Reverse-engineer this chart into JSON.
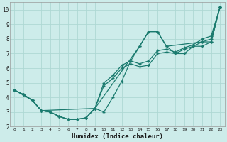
{
  "xlabel": "Humidex (Indice chaleur)",
  "bg_color": "#cdecea",
  "line_color": "#1a7a6e",
  "grid_color": "#aed8d4",
  "xlim": [
    -0.5,
    23.5
  ],
  "ylim": [
    2,
    10.5
  ],
  "xticks": [
    0,
    1,
    2,
    3,
    4,
    5,
    6,
    7,
    8,
    9,
    10,
    11,
    12,
    13,
    14,
    15,
    16,
    17,
    18,
    19,
    20,
    21,
    22,
    23
  ],
  "yticks": [
    2,
    3,
    4,
    5,
    6,
    7,
    8,
    9,
    10
  ],
  "lines": [
    {
      "x": [
        0,
        1,
        2,
        3,
        4,
        5,
        6,
        7,
        8,
        9,
        10,
        11,
        12,
        13,
        14,
        15,
        16,
        17,
        18,
        19,
        20,
        21,
        22,
        23
      ],
      "y": [
        4.5,
        4.2,
        3.8,
        3.1,
        3.0,
        2.7,
        2.5,
        2.5,
        2.6,
        3.25,
        3.0,
        4.0,
        5.1,
        6.5,
        7.5,
        8.5,
        8.5,
        7.5,
        7.0,
        7.0,
        7.5,
        7.5,
        7.8,
        10.2
      ]
    },
    {
      "x": [
        0,
        1,
        2,
        3,
        4,
        5,
        6,
        7,
        8,
        9,
        10,
        11,
        12,
        13,
        14,
        15,
        16,
        17,
        18,
        19,
        20,
        21,
        22,
        23
      ],
      "y": [
        4.5,
        4.2,
        3.8,
        3.1,
        3.0,
        2.7,
        2.5,
        2.5,
        2.6,
        3.25,
        4.8,
        5.3,
        6.0,
        6.3,
        6.1,
        6.2,
        7.0,
        7.1,
        7.0,
        7.3,
        7.5,
        7.8,
        8.0,
        10.2
      ]
    },
    {
      "x": [
        0,
        1,
        2,
        3,
        4,
        5,
        6,
        7,
        8,
        9,
        10,
        11,
        12,
        13,
        14,
        15,
        16,
        17,
        18,
        19,
        20,
        21,
        22,
        23
      ],
      "y": [
        4.5,
        4.2,
        3.8,
        3.1,
        3.0,
        2.7,
        2.5,
        2.5,
        2.6,
        3.25,
        5.0,
        5.5,
        6.2,
        6.5,
        6.3,
        6.5,
        7.2,
        7.3,
        7.1,
        7.4,
        7.6,
        8.0,
        8.2,
        10.2
      ]
    },
    {
      "x": [
        0,
        2,
        3,
        9,
        14,
        15,
        16,
        17,
        21,
        22,
        23
      ],
      "y": [
        4.5,
        3.8,
        3.1,
        3.25,
        7.5,
        8.5,
        8.5,
        7.5,
        7.8,
        7.8,
        10.2
      ]
    }
  ]
}
